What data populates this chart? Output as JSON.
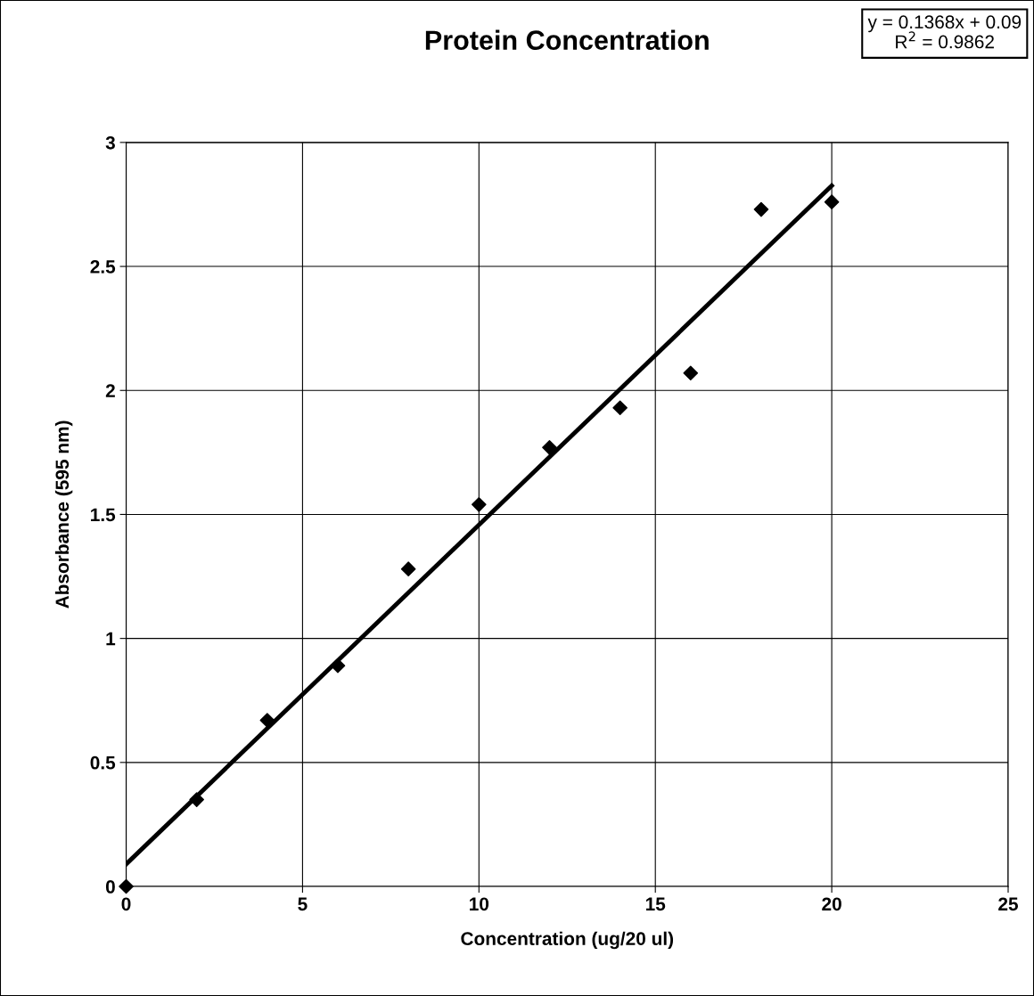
{
  "chart_data": {
    "type": "scatter",
    "title": "Protein Concentration",
    "xlabel": "Concentration (ug/20 ul)",
    "ylabel": "Absorbance (595 nm)",
    "x": [
      0,
      2,
      4,
      6,
      8,
      10,
      12,
      14,
      16,
      18,
      20
    ],
    "series": [
      {
        "color": "#000000",
        "marker": "diamond",
        "values": [
          0,
          0.35,
          0.67,
          0.89,
          1.28,
          1.54,
          1.77,
          1.93,
          2.07,
          2.73,
          2.76
        ]
      },
      {
        "type": "line",
        "color": "#000000",
        "marker": "none",
        "line_style": "solid",
        "x": [
          0,
          20
        ],
        "values": [
          0.09,
          2.826
        ]
      }
    ],
    "annotations": [
      "y = 0.1368x + 0.09\nR$^{2}$ = 0.9862"
    ],
    "xlim": [
      0,
      25
    ],
    "ylim": [
      0,
      3
    ],
    "xticks": [
      0,
      5,
      10,
      15,
      20,
      25
    ],
    "yticks": [
      0,
      0.5,
      1,
      1.5,
      2,
      2.5,
      3
    ],
    "grid": true
  }
}
